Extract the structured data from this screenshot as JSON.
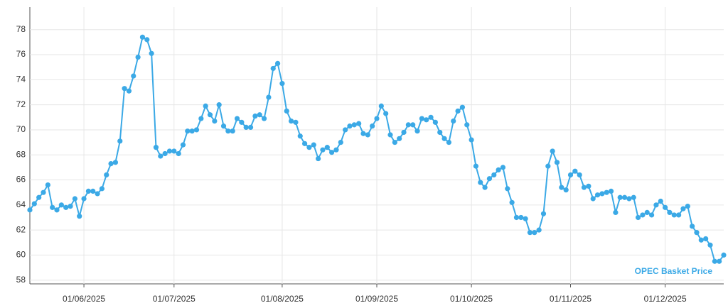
{
  "chart_data": {
    "type": "line",
    "categories": [
      null,
      null,
      null,
      null,
      null,
      null,
      null,
      null,
      null,
      null,
      null,
      null,
      "01/06/2025",
      null,
      null,
      null,
      null,
      null,
      null,
      null,
      null,
      null,
      null,
      null,
      null,
      null,
      null,
      null,
      null,
      null,
      null,
      null,
      "01/07/2025",
      null,
      null,
      null,
      null,
      null,
      null,
      null,
      null,
      null,
      null,
      null,
      null,
      null,
      null,
      null,
      null,
      null,
      null,
      null,
      null,
      null,
      null,
      null,
      "01/08/2025",
      null,
      null,
      null,
      null,
      null,
      null,
      null,
      null,
      null,
      null,
      null,
      null,
      null,
      null,
      null,
      null,
      null,
      null,
      null,
      null,
      "01/09/2025",
      null,
      null,
      null,
      null,
      null,
      null,
      null,
      null,
      null,
      null,
      null,
      null,
      null,
      null,
      null,
      null,
      null,
      null,
      null,
      null,
      "01/10/2025",
      null,
      null,
      null,
      null,
      null,
      null,
      null,
      null,
      null,
      null,
      null,
      null,
      null,
      null,
      null,
      null,
      null,
      null,
      null,
      null,
      null,
      "01/11/2025",
      null,
      null,
      null,
      null,
      null,
      null,
      null,
      null,
      null,
      null,
      null,
      null,
      null,
      null,
      null,
      null,
      null,
      null,
      null,
      null,
      "01/12/2025",
      null,
      null,
      null,
      null,
      null,
      null,
      null,
      null,
      null,
      null,
      null,
      null,
      null
    ],
    "series": [
      {
        "name": "OPEC Basket Price",
        "color": "#3ba9e6",
        "values": [
          63.6,
          64.1,
          64.6,
          65.0,
          65.6,
          63.8,
          63.6,
          64.0,
          63.8,
          63.9,
          64.5,
          63.1,
          64.5,
          65.1,
          65.1,
          64.9,
          65.3,
          66.4,
          67.3,
          67.4,
          69.1,
          73.3,
          73.1,
          74.3,
          75.8,
          77.4,
          77.2,
          76.1,
          68.6,
          67.9,
          68.1,
          68.3,
          68.3,
          68.1,
          68.8,
          69.9,
          69.9,
          70.0,
          70.9,
          71.9,
          71.2,
          70.7,
          72.0,
          70.3,
          69.9,
          69.9,
          70.9,
          70.6,
          70.2,
          70.2,
          71.1,
          71.2,
          70.9,
          72.6,
          74.9,
          75.3,
          73.7,
          71.5,
          70.7,
          70.6,
          69.5,
          68.9,
          68.6,
          68.8,
          67.7,
          68.4,
          68.6,
          68.2,
          68.4,
          69.0,
          70.0,
          70.3,
          70.4,
          70.5,
          69.7,
          69.6,
          70.3,
          70.9,
          71.9,
          71.3,
          69.6,
          69.0,
          69.3,
          69.8,
          70.4,
          70.4,
          69.9,
          70.9,
          70.8,
          71.0,
          70.6,
          69.8,
          69.3,
          69.0,
          70.7,
          71.5,
          71.8,
          70.4,
          69.2,
          67.1,
          65.8,
          65.4,
          66.1,
          66.4,
          66.8,
          67.0,
          65.3,
          64.2,
          63.0,
          63.0,
          62.9,
          61.8,
          61.8,
          62.0,
          63.3,
          67.1,
          68.3,
          67.4,
          65.4,
          65.2,
          66.4,
          66.7,
          66.4,
          65.4,
          65.5,
          64.5,
          64.8,
          64.9,
          65.0,
          65.1,
          63.4,
          64.6,
          64.6,
          64.5,
          64.6,
          63.0,
          63.2,
          63.4,
          63.2,
          64.0,
          64.3,
          63.8,
          63.4,
          63.2,
          63.2,
          63.7,
          63.9,
          62.3,
          61.8,
          61.2,
          61.3,
          60.8,
          59.5,
          59.5,
          60.0
        ]
      }
    ],
    "ylim": [
      57.7,
      79.8
    ],
    "yticks": [
      58,
      60,
      62,
      64,
      66,
      68,
      70,
      72,
      74,
      76,
      78
    ],
    "grid": true
  }
}
